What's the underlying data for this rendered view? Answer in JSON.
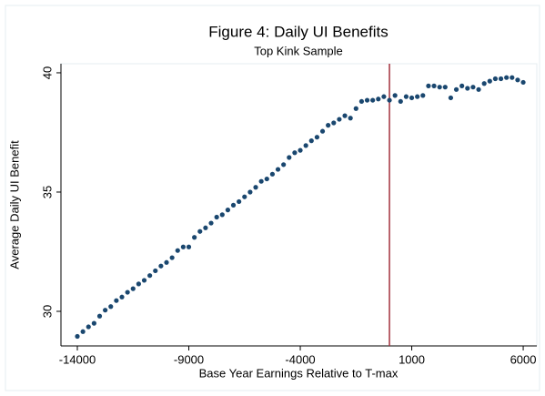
{
  "chart_data": {
    "type": "scatter",
    "title": "Figure 4: Daily UI Benefits",
    "subtitle": "Top Kink Sample",
    "x_label": "Base Year Earnings Relative to T-max",
    "y_label": "Average Daily UI Benefit",
    "x": [
      -14000,
      -13750,
      -13500,
      -13250,
      -13000,
      -12750,
      -12500,
      -12250,
      -12000,
      -11750,
      -11500,
      -11250,
      -11000,
      -10750,
      -10500,
      -10250,
      -10000,
      -9750,
      -9500,
      -9250,
      -9000,
      -8750,
      -8500,
      -8250,
      -8000,
      -7750,
      -7500,
      -7250,
      -7000,
      -6750,
      -6500,
      -6250,
      -6000,
      -5750,
      -5500,
      -5250,
      -5000,
      -4750,
      -4500,
      -4250,
      -4000,
      -3750,
      -3500,
      -3250,
      -3000,
      -2750,
      -2500,
      -2250,
      -2000,
      -1750,
      -1500,
      -1250,
      -1000,
      -750,
      -500,
      -250,
      0,
      250,
      500,
      750,
      1000,
      1250,
      1500,
      1750,
      2000,
      2250,
      2500,
      2750,
      3000,
      3250,
      3500,
      3750,
      4000,
      4250,
      4500,
      4750,
      5000,
      5250,
      5500,
      5750,
      6000
    ],
    "series": [
      {
        "color": "#1a476f",
        "values": [
          28.95,
          29.15,
          29.35,
          29.5,
          29.8,
          30.05,
          30.2,
          30.45,
          30.6,
          30.8,
          30.95,
          31.15,
          31.3,
          31.5,
          31.7,
          31.9,
          32.05,
          32.25,
          32.55,
          32.7,
          32.7,
          33.1,
          33.35,
          33.5,
          33.7,
          33.95,
          34.05,
          34.25,
          34.45,
          34.6,
          34.8,
          35.0,
          35.2,
          35.45,
          35.55,
          35.75,
          35.95,
          36.15,
          36.45,
          36.65,
          36.75,
          36.95,
          37.15,
          37.3,
          37.55,
          37.8,
          37.9,
          38.05,
          38.2,
          38.1,
          38.5,
          38.8,
          38.85,
          38.85,
          38.9,
          39.0,
          38.85,
          39.05,
          38.8,
          39.0,
          38.95,
          39.0,
          39.05,
          39.45,
          39.45,
          39.4,
          39.4,
          38.95,
          39.3,
          39.45,
          39.35,
          39.4,
          39.3,
          39.55,
          39.65,
          39.75,
          39.75,
          39.8,
          39.8,
          39.7,
          39.6
        ]
      }
    ],
    "xlim": [
      -14735,
      6610
    ],
    "ylim": [
      28.55,
      40.38
    ],
    "xticks": [
      -14000,
      -9000,
      -4000,
      1000,
      6000
    ],
    "yticks": [
      30,
      35,
      40
    ],
    "vline": {
      "x": 0,
      "color": "#a3303d"
    }
  }
}
